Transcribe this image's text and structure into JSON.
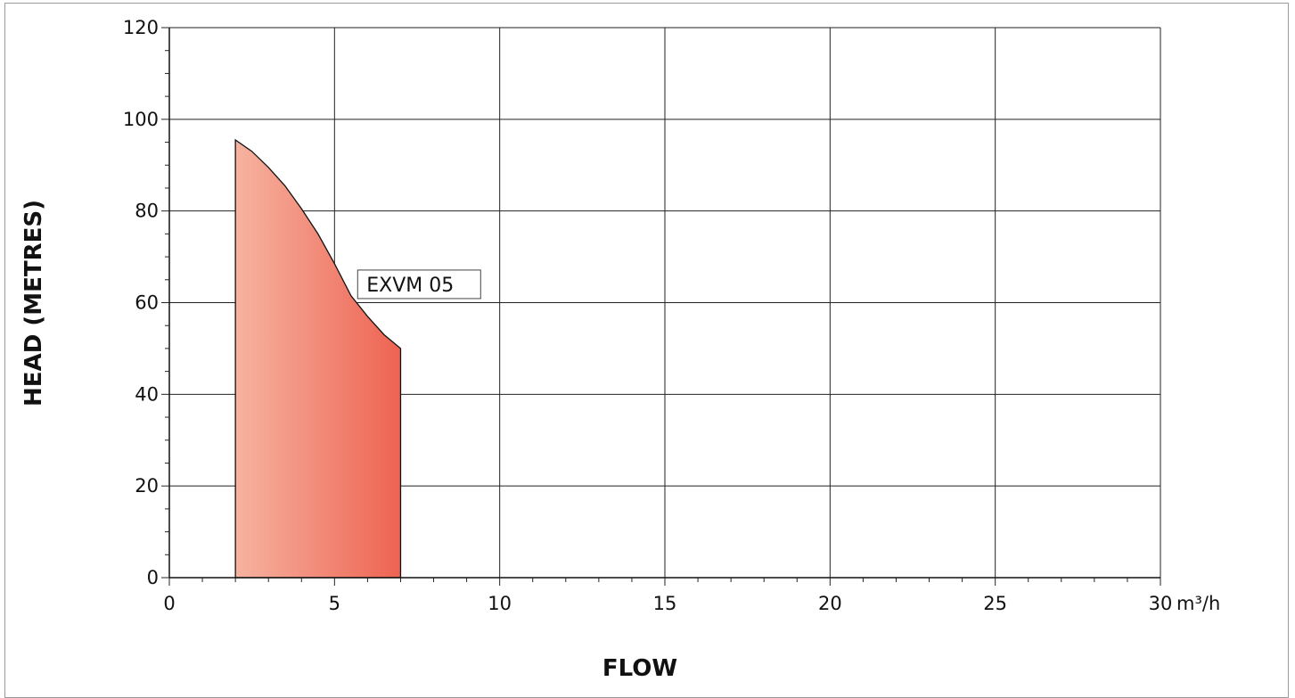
{
  "chart_data": {
    "type": "area",
    "xlabel": "FLOW",
    "ylabel": "HEAD (METRES)",
    "x_unit": "m³/h",
    "xlim": [
      0,
      30
    ],
    "ylim": [
      0,
      120
    ],
    "x_ticks": [
      0,
      5,
      10,
      15,
      20,
      25,
      30
    ],
    "y_ticks": [
      0,
      20,
      40,
      60,
      80,
      100,
      120
    ],
    "x_minor_step": 1,
    "y_minor_step": 5,
    "grid": true,
    "series": [
      {
        "name": "EXVM 05",
        "color_start": "#f6b3a0",
        "color_end": "#ee6352",
        "x": [
          2,
          2.5,
          3,
          3.5,
          4,
          4.5,
          5,
          5.5,
          6,
          6.5,
          7
        ],
        "y": [
          95.5,
          93,
          89.5,
          85.5,
          80.5,
          75,
          68.5,
          61.5,
          57,
          53,
          50
        ]
      }
    ]
  }
}
